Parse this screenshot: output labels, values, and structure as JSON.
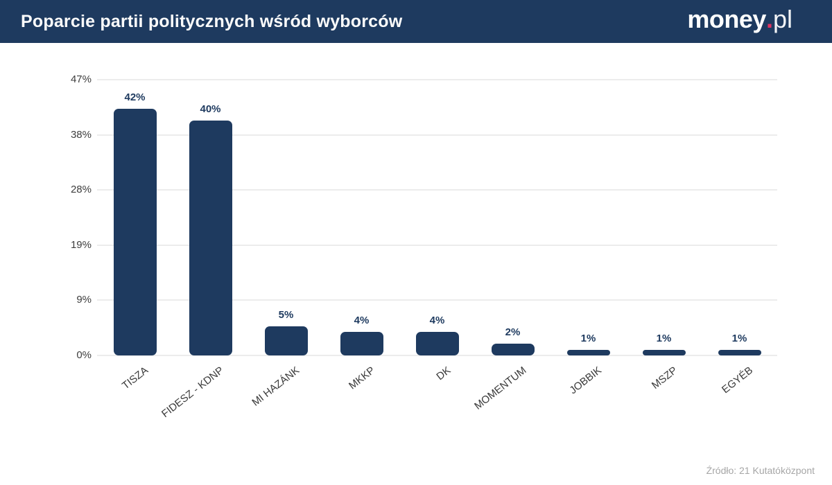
{
  "header": {
    "title": "Poparcie partii politycznych wśród wyborców",
    "logo": {
      "money": "money",
      "dot": ".",
      "pl": "pl"
    },
    "bg_color": "#1e3a5f"
  },
  "chart_data": {
    "type": "bar",
    "title": "Poparcie partii politycznych wśród wyborców",
    "categories": [
      "TISZA",
      "FIDESZ - KDNP",
      "MI HAZÁNK",
      "MKKP",
      "DK",
      "MOMENTUM",
      "JOBBIK",
      "MSZP",
      "EGYÉB"
    ],
    "values": [
      42,
      40,
      5,
      4,
      4,
      2,
      1,
      1,
      1
    ],
    "value_labels": [
      "42%",
      "40%",
      "5%",
      "4%",
      "4%",
      "2%",
      "1%",
      "1%",
      "1%"
    ],
    "xlabel": "",
    "ylabel": "",
    "ylim": [
      0,
      47
    ],
    "yticks": [
      0,
      9,
      19,
      28,
      38,
      47
    ],
    "ytick_labels": [
      "0%",
      "9%",
      "19%",
      "28%",
      "38%",
      "47%"
    ],
    "grid": true,
    "legend": "none",
    "bar_color": "#1e3a5f",
    "grid_color": "#ececec",
    "value_label_color": "#1e3a5f",
    "axis_label_color": "#3a3a3a"
  },
  "footer": {
    "source": "Źródło: 21 Kutatóközpont"
  }
}
